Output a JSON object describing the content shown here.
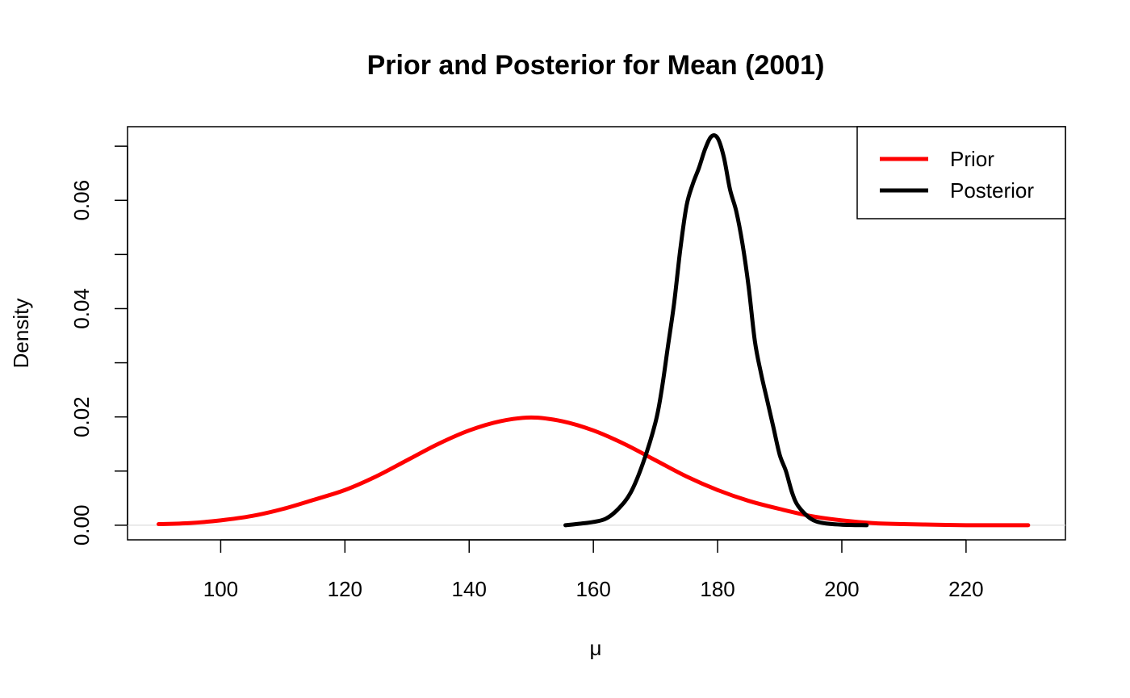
{
  "chart_data": {
    "type": "line",
    "title": "Prior and Posterior for Mean (2001)",
    "xlabel": "μ",
    "ylabel": "Density",
    "xlim": [
      85,
      236
    ],
    "ylim": [
      -0.0027,
      0.0736
    ],
    "x_ticks": [
      100,
      120,
      140,
      160,
      180,
      200,
      220
    ],
    "x_tick_labels": [
      "100",
      "120",
      "140",
      "160",
      "180",
      "200",
      "220"
    ],
    "y_ticks": [
      0.0,
      0.01,
      0.02,
      0.03,
      0.04,
      0.05,
      0.06,
      0.07
    ],
    "y_tick_labels": [
      "0.00",
      "",
      "0.02",
      "",
      "0.04",
      "",
      "0.06",
      ""
    ],
    "legend_position": "top-right",
    "series": [
      {
        "name": "Prior",
        "color": "#ff0000",
        "x": [
          90,
          95,
          100,
          105,
          110,
          115,
          120,
          125,
          130,
          135,
          140,
          145,
          150,
          155,
          160,
          165,
          170,
          175,
          180,
          185,
          190,
          195,
          200,
          205,
          210,
          215,
          220,
          225,
          230
        ],
        "values": [
          0.0002,
          0.0004,
          0.0009,
          0.0017,
          0.003,
          0.0047,
          0.0065,
          0.009,
          0.012,
          0.015,
          0.0175,
          0.0192,
          0.0199,
          0.0192,
          0.0175,
          0.015,
          0.012,
          0.009,
          0.0065,
          0.0045,
          0.003,
          0.0017,
          0.0009,
          0.0004,
          0.0002,
          0.0001,
          0.0,
          0.0,
          0.0
        ]
      },
      {
        "name": "Posterior",
        "color": "#000000",
        "x": [
          155.5,
          158,
          160,
          162,
          164,
          166,
          168,
          170,
          171,
          172,
          173,
          174,
          175,
          176,
          177,
          178,
          179,
          180,
          181,
          182,
          183,
          184,
          185,
          186,
          187,
          188,
          189,
          190,
          191,
          192,
          193,
          195,
          197,
          200,
          204
        ],
        "values": [
          0.0,
          0.0003,
          0.0006,
          0.0012,
          0.003,
          0.006,
          0.0115,
          0.019,
          0.025,
          0.033,
          0.041,
          0.051,
          0.059,
          0.063,
          0.066,
          0.0695,
          0.0718,
          0.0715,
          0.068,
          0.062,
          0.058,
          0.052,
          0.044,
          0.034,
          0.028,
          0.023,
          0.018,
          0.013,
          0.01,
          0.006,
          0.0035,
          0.0012,
          0.0004,
          0.0001,
          0.0
        ]
      }
    ]
  }
}
